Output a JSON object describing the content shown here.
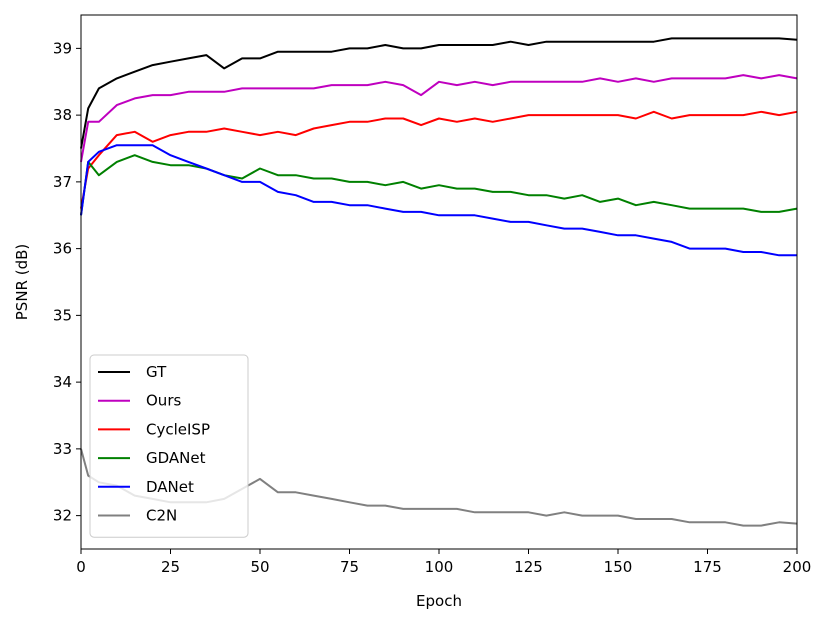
{
  "chart_data": {
    "type": "line",
    "xlabel": "Epoch",
    "ylabel": "PSNR (dB)",
    "xlim": [
      0,
      200
    ],
    "ylim": [
      31.5,
      39.5
    ],
    "xticks": [
      0,
      25,
      50,
      75,
      100,
      125,
      150,
      175,
      200
    ],
    "yticks": [
      32,
      33,
      34,
      35,
      36,
      37,
      38,
      39
    ],
    "grid": false,
    "legend_position": "lower-left",
    "x": [
      0,
      2,
      5,
      10,
      15,
      20,
      25,
      30,
      35,
      40,
      45,
      50,
      55,
      60,
      65,
      70,
      75,
      80,
      85,
      90,
      95,
      100,
      105,
      110,
      115,
      120,
      125,
      130,
      135,
      140,
      145,
      150,
      155,
      160,
      165,
      170,
      175,
      180,
      185,
      190,
      195,
      200
    ],
    "series": [
      {
        "name": "GT",
        "color": "#000000",
        "values": [
          37.5,
          38.1,
          38.4,
          38.55,
          38.65,
          38.75,
          38.8,
          38.85,
          38.9,
          38.7,
          38.85,
          38.85,
          38.95,
          38.95,
          38.95,
          38.95,
          39.0,
          39.0,
          39.05,
          39.0,
          39.0,
          39.05,
          39.05,
          39.05,
          39.05,
          39.1,
          39.05,
          39.1,
          39.1,
          39.1,
          39.1,
          39.1,
          39.1,
          39.1,
          39.15,
          39.15,
          39.15,
          39.15,
          39.15,
          39.15,
          39.15,
          39.13
        ]
      },
      {
        "name": "Ours",
        "color": "#bf00bf",
        "values": [
          37.3,
          37.9,
          37.9,
          38.15,
          38.25,
          38.3,
          38.3,
          38.35,
          38.35,
          38.35,
          38.4,
          38.4,
          38.4,
          38.4,
          38.4,
          38.45,
          38.45,
          38.45,
          38.5,
          38.45,
          38.3,
          38.5,
          38.45,
          38.5,
          38.45,
          38.5,
          38.5,
          38.5,
          38.5,
          38.5,
          38.55,
          38.5,
          38.55,
          38.5,
          38.55,
          38.55,
          38.55,
          38.55,
          38.6,
          38.55,
          38.6,
          38.55
        ]
      },
      {
        "name": "CycleISP",
        "color": "#ff0000",
        "values": [
          36.6,
          37.2,
          37.4,
          37.7,
          37.75,
          37.6,
          37.7,
          37.75,
          37.75,
          37.8,
          37.75,
          37.7,
          37.75,
          37.7,
          37.8,
          37.85,
          37.9,
          37.9,
          37.95,
          37.95,
          37.85,
          37.95,
          37.9,
          37.95,
          37.9,
          37.95,
          38.0,
          38.0,
          38.0,
          38.0,
          38.0,
          38.0,
          37.95,
          38.05,
          37.95,
          38.0,
          38.0,
          38.0,
          38.0,
          38.05,
          38.0,
          38.05
        ]
      },
      {
        "name": "GDANet",
        "color": "#008000",
        "values": [
          36.5,
          37.3,
          37.1,
          37.3,
          37.4,
          37.3,
          37.25,
          37.25,
          37.2,
          37.1,
          37.05,
          37.2,
          37.1,
          37.1,
          37.05,
          37.05,
          37.0,
          37.0,
          36.95,
          37.0,
          36.9,
          36.95,
          36.9,
          36.9,
          36.85,
          36.85,
          36.8,
          36.8,
          36.75,
          36.8,
          36.7,
          36.75,
          36.65,
          36.7,
          36.65,
          36.6,
          36.6,
          36.6,
          36.6,
          36.55,
          36.55,
          36.6
        ]
      },
      {
        "name": "DANet",
        "color": "#0000ff",
        "values": [
          36.5,
          37.3,
          37.45,
          37.55,
          37.55,
          37.55,
          37.4,
          37.3,
          37.2,
          37.1,
          37.0,
          37.0,
          36.85,
          36.8,
          36.7,
          36.7,
          36.65,
          36.65,
          36.6,
          36.55,
          36.55,
          36.5,
          36.5,
          36.5,
          36.45,
          36.4,
          36.4,
          36.35,
          36.3,
          36.3,
          36.25,
          36.2,
          36.2,
          36.15,
          36.1,
          36.0,
          36.0,
          36.0,
          35.95,
          35.95,
          35.9,
          35.9
        ]
      },
      {
        "name": "C2N",
        "color": "#808080",
        "values": [
          33.0,
          32.6,
          32.5,
          32.45,
          32.3,
          32.25,
          32.2,
          32.2,
          32.2,
          32.25,
          32.4,
          32.55,
          32.35,
          32.35,
          32.3,
          32.25,
          32.2,
          32.15,
          32.15,
          32.1,
          32.1,
          32.1,
          32.1,
          32.05,
          32.05,
          32.05,
          32.05,
          32.0,
          32.05,
          32.0,
          32.0,
          32.0,
          31.95,
          31.95,
          31.95,
          31.9,
          31.9,
          31.9,
          31.85,
          31.85,
          31.9,
          31.88
        ]
      }
    ]
  }
}
